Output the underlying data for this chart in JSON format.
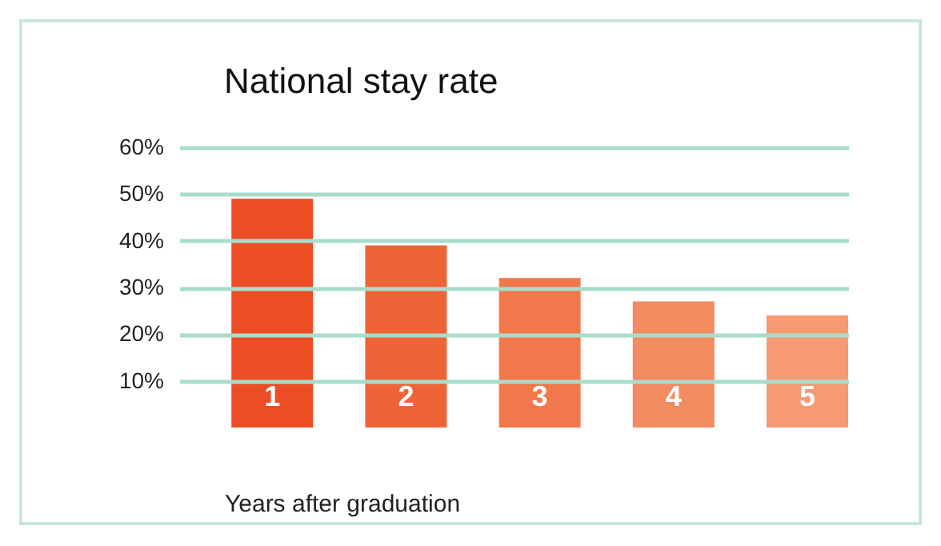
{
  "chart_data": {
    "type": "bar",
    "title": "National stay rate",
    "xlabel": "Years after graduation",
    "categories": [
      "1",
      "2",
      "3",
      "4",
      "5"
    ],
    "values": [
      49,
      39,
      32,
      27,
      24
    ],
    "colors": [
      "#ec4d24",
      "#ef6436",
      "#f2774a",
      "#f48a60",
      "#f69a74"
    ],
    "ylim": [
      0,
      60
    ],
    "yticks": [
      {
        "value": 10,
        "label": "10%"
      },
      {
        "value": 20,
        "label": "20%"
      },
      {
        "value": 30,
        "label": "30%"
      },
      {
        "value": 40,
        "label": "40%"
      },
      {
        "value": 50,
        "label": "50%"
      },
      {
        "value": 60,
        "label": "60%"
      }
    ],
    "grid": "y"
  }
}
